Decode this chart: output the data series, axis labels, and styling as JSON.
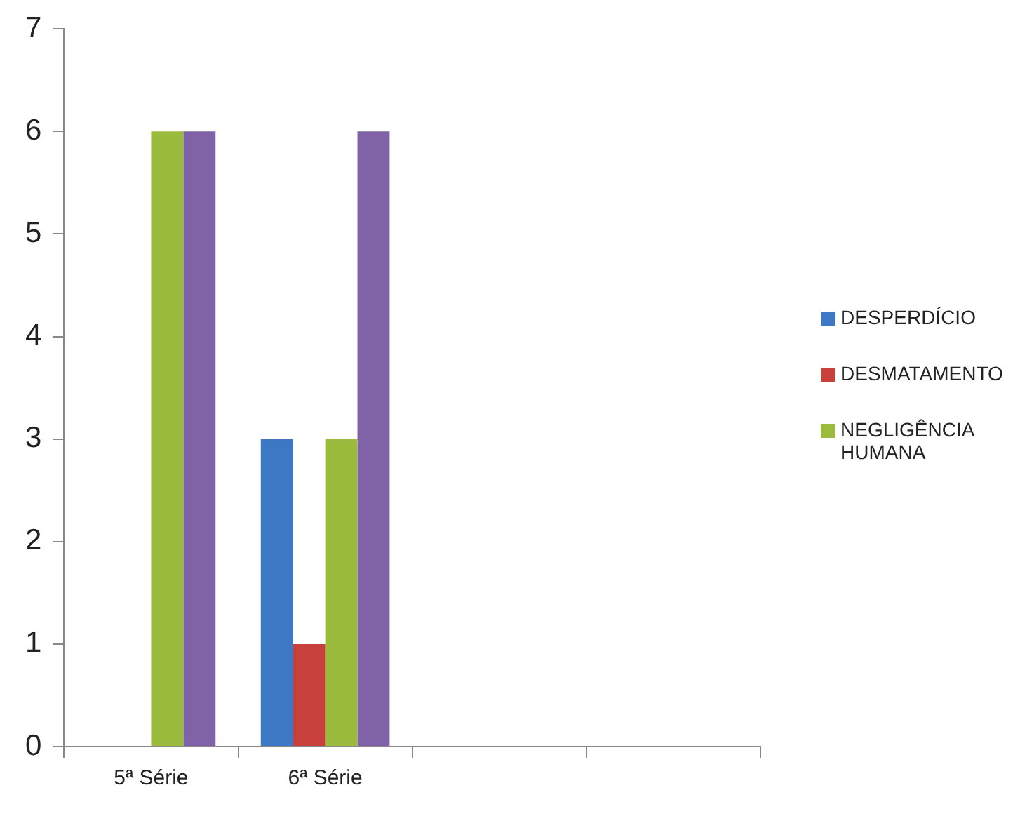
{
  "chart_data": {
    "type": "bar",
    "categories": [
      "5ª Série",
      "6ª Série",
      null,
      null
    ],
    "series": [
      {
        "name": "DESPERDÍCIO",
        "color": "#3d78c4",
        "values": [
          0,
          3,
          null,
          null
        ]
      },
      {
        "name": "DESMATAMENTO",
        "color": "#c8403c",
        "values": [
          0,
          1,
          null,
          null
        ]
      },
      {
        "name": "NEGLIGÊNCIA HUMANA",
        "color": "#9bbb3c",
        "values": [
          6,
          3,
          null,
          null
        ]
      },
      {
        "color": "#8063a6",
        "values": [
          6,
          6,
          null,
          null
        ]
      }
    ],
    "ylim": [
      0,
      7
    ],
    "yticks": [
      0,
      1,
      2,
      3,
      4,
      5,
      6,
      7
    ],
    "grid": false,
    "legend": "right"
  }
}
